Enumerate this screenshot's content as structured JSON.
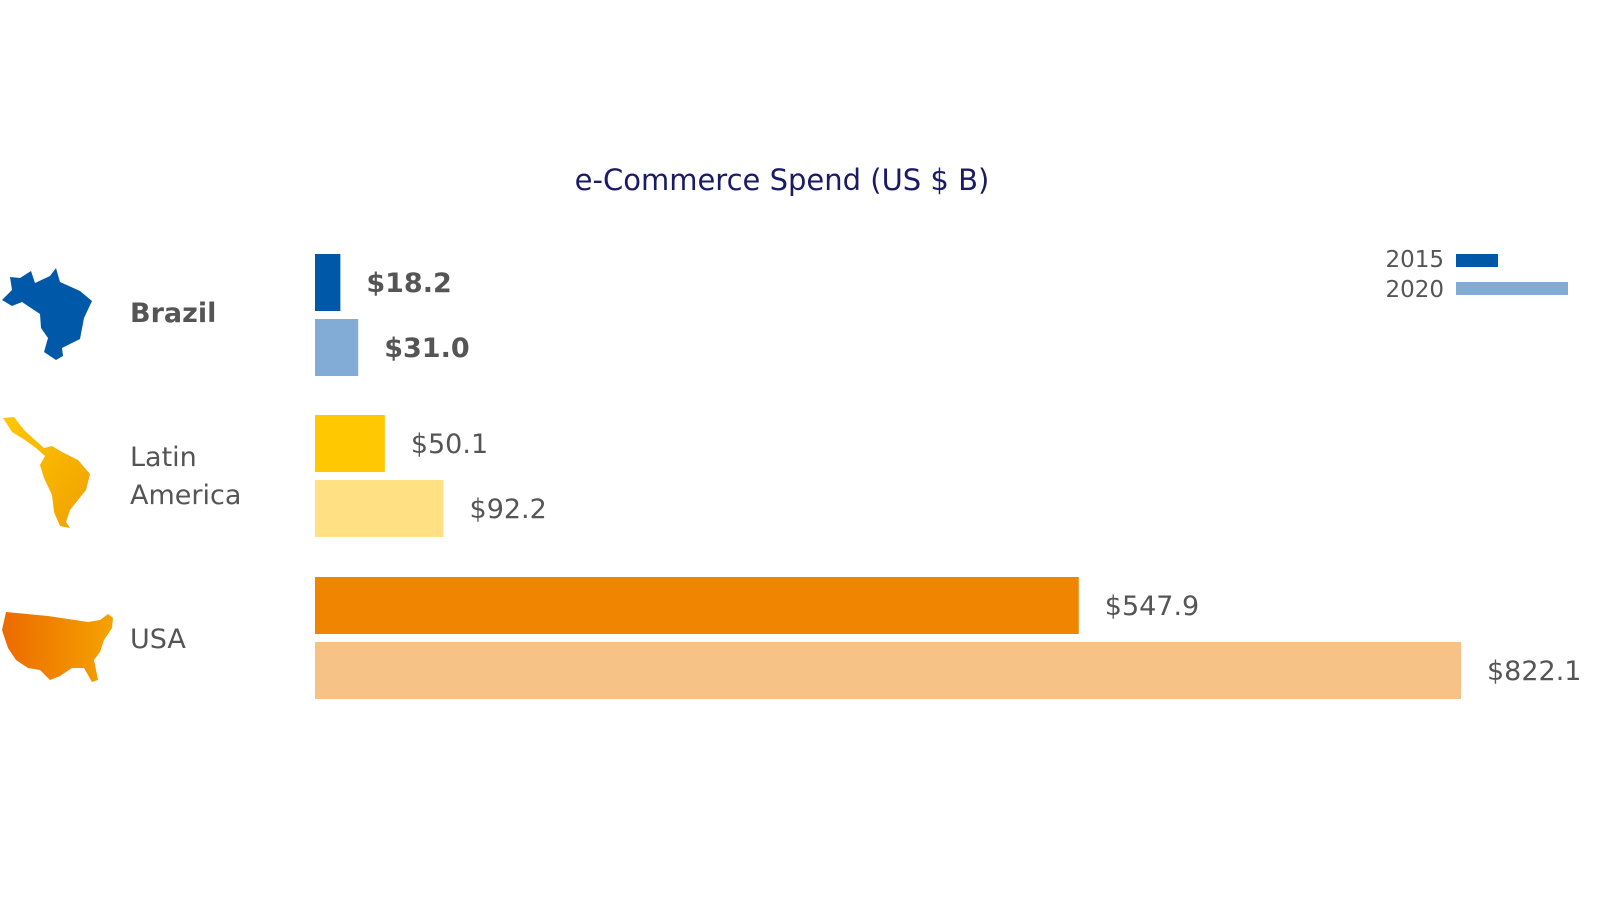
{
  "chart_data": {
    "type": "bar",
    "orientation": "horizontal",
    "title": "e-Commerce Spend (US $ B)",
    "categories": [
      "Brazil",
      "Latin America",
      "USA"
    ],
    "series": [
      {
        "name": "2015",
        "values": [
          18.2,
          50.1,
          547.9
        ]
      },
      {
        "name": "2020",
        "values": [
          31.0,
          92.2,
          822.1
        ]
      }
    ],
    "labels": [
      [
        "$18.2",
        "$31.0"
      ],
      [
        "$50.1",
        "$92.2"
      ],
      [
        "$547.9",
        "$822.1"
      ]
    ],
    "colors": [
      [
        "#0059a8",
        "#82acd6"
      ],
      [
        "#ffc800",
        "#ffe082"
      ],
      [
        "#ef8500",
        "#f7c285"
      ]
    ],
    "legend_colors": [
      "#0059a8",
      "#82acd6"
    ],
    "legend": "top-right",
    "grid": false,
    "xlim": [
      0,
      822.1
    ]
  }
}
